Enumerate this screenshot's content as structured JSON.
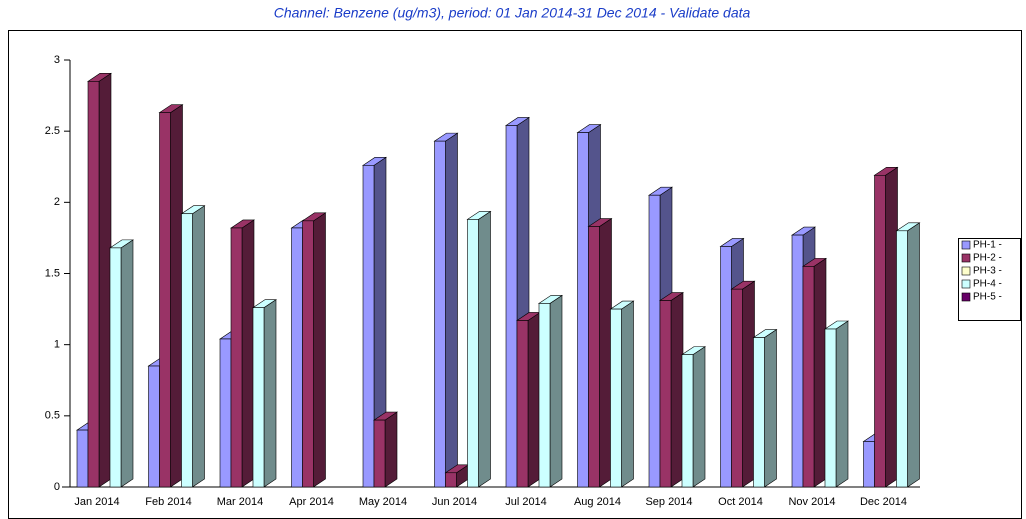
{
  "chart_data": {
    "type": "bar3d",
    "title": "Channel: Benzene (ug/m3), period: 01 Jan 2014-31 Dec 2014 - Validate data",
    "categories": [
      "Jan 2014",
      "Feb 2014",
      "Mar 2014",
      "Apr 2014",
      "May 2014",
      "Jun 2014",
      "Jul 2014",
      "Aug 2014",
      "Sep 2014",
      "Oct 2014",
      "Nov 2014",
      "Dec 2014"
    ],
    "series": [
      {
        "name": "PH-1 -",
        "color": "#9999ff",
        "values": [
          0.4,
          0.85,
          1.04,
          1.82,
          2.26,
          2.43,
          2.54,
          2.49,
          2.05,
          1.69,
          1.77,
          0.32
        ]
      },
      {
        "name": "PH-2 -",
        "color": "#993366",
        "values": [
          2.85,
          2.63,
          1.82,
          1.87,
          0.47,
          0.1,
          1.17,
          1.83,
          1.31,
          1.39,
          1.55,
          2.19
        ]
      },
      {
        "name": "PH-3 -",
        "color": "#ffffcc",
        "values": [
          null,
          null,
          null,
          null,
          null,
          null,
          null,
          null,
          null,
          null,
          null,
          null
        ]
      },
      {
        "name": "PH-4 -",
        "color": "#ccffff",
        "values": [
          1.68,
          1.92,
          1.26,
          null,
          null,
          1.88,
          1.29,
          1.25,
          0.93,
          1.05,
          1.11,
          1.8
        ]
      },
      {
        "name": "PH-5 -",
        "color": "#660066",
        "values": [
          null,
          null,
          null,
          null,
          null,
          null,
          null,
          null,
          null,
          null,
          null,
          null
        ]
      }
    ],
    "ylim": [
      0,
      3
    ],
    "yticks": [
      0,
      0.5,
      1,
      1.5,
      2,
      2.5,
      3
    ],
    "legend": "right"
  }
}
